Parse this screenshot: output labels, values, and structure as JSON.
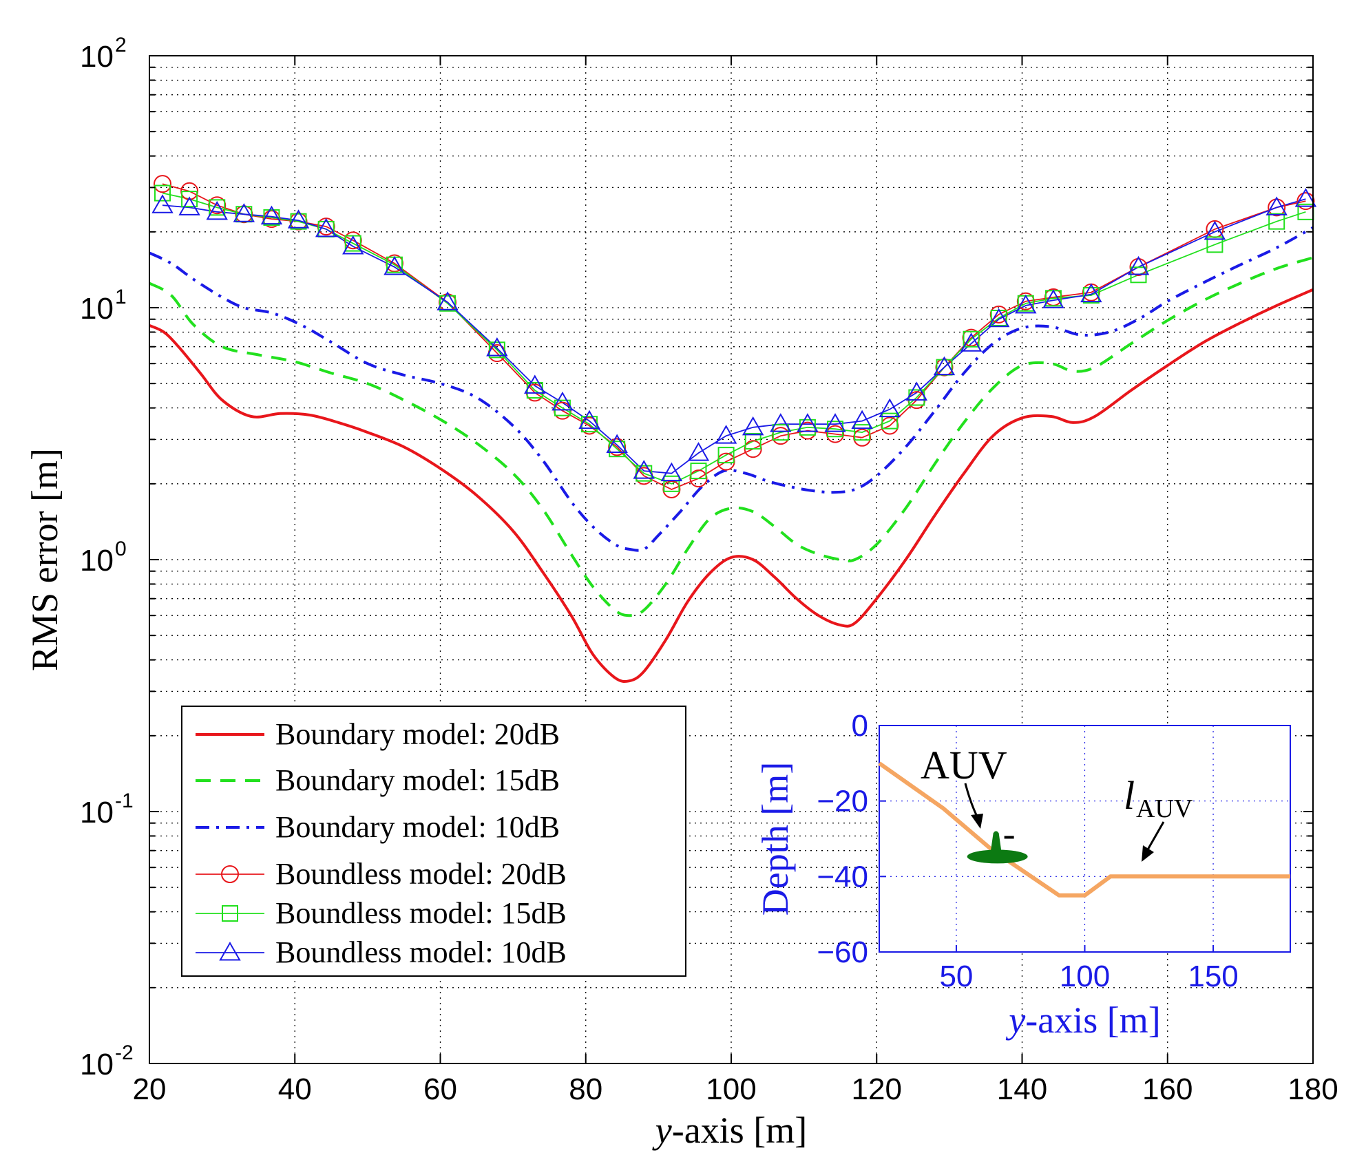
{
  "chart_data": {
    "type": "line",
    "title": "",
    "xlabel_italic": "y",
    "xlabel_rest": "-axis [m]",
    "ylabel": "RMS error [m]",
    "x_range": [
      20,
      180
    ],
    "y_range_log": [
      0.01,
      100
    ],
    "y_scale": "log",
    "grid": true,
    "x_ticks": [
      "20",
      "40",
      "60",
      "80",
      "100",
      "120",
      "140",
      "160",
      "180"
    ],
    "y_ticks": [
      {
        "base": "10",
        "exp": "-2",
        "value": 0.01
      },
      {
        "base": "10",
        "exp": "-1",
        "value": 0.1
      },
      {
        "base": "10",
        "exp": "0",
        "value": 1
      },
      {
        "base": "10",
        "exp": "1",
        "value": 10
      },
      {
        "base": "10",
        "exp": "2",
        "value": 100
      }
    ],
    "legend_placement": "bottom-left",
    "series": [
      {
        "name": "Boundary model: 20dB",
        "color": "#e8161b",
        "style": "solid",
        "marker": "none",
        "x": [
          20,
          22,
          24,
          27,
          30,
          34,
          38,
          42,
          46,
          50,
          55,
          60,
          65,
          70,
          74,
          78,
          81,
          84,
          86,
          88,
          91,
          94,
          97,
          100,
          103,
          106,
          109,
          112,
          115,
          117,
          120,
          124,
          128,
          132,
          136,
          140,
          144,
          147,
          150,
          155,
          160,
          165,
          170,
          175,
          180
        ],
        "values": [
          8.5,
          8.0,
          7.0,
          5.5,
          4.3,
          3.7,
          3.8,
          3.75,
          3.5,
          3.2,
          2.8,
          2.3,
          1.8,
          1.3,
          0.9,
          0.6,
          0.42,
          0.34,
          0.33,
          0.36,
          0.48,
          0.68,
          0.88,
          1.02,
          1.0,
          0.85,
          0.7,
          0.6,
          0.55,
          0.56,
          0.7,
          1.0,
          1.5,
          2.2,
          3.1,
          3.65,
          3.7,
          3.5,
          3.7,
          4.7,
          5.9,
          7.3,
          8.7,
          10.2,
          11.8
        ]
      },
      {
        "name": "Boundary model: 15dB",
        "color": "#22e01e",
        "style": "dashed",
        "marker": "none",
        "x": [
          20,
          23,
          26,
          30,
          35,
          40,
          45,
          50,
          55,
          60,
          65,
          70,
          74,
          78,
          81,
          84,
          86,
          88,
          91,
          94,
          97,
          100,
          103,
          106,
          109,
          112,
          115,
          117,
          120,
          124,
          128,
          132,
          136,
          140,
          144,
          147,
          150,
          155,
          160,
          165,
          170,
          175,
          180
        ],
        "values": [
          12.5,
          11.2,
          8.6,
          7.0,
          6.5,
          6.1,
          5.5,
          5.0,
          4.3,
          3.6,
          2.9,
          2.2,
          1.6,
          1.05,
          0.78,
          0.63,
          0.6,
          0.63,
          0.8,
          1.1,
          1.45,
          1.6,
          1.55,
          1.35,
          1.15,
          1.05,
          1.0,
          1.0,
          1.15,
          1.6,
          2.4,
          3.5,
          4.8,
          5.9,
          6.0,
          5.6,
          5.8,
          7.2,
          8.9,
          10.7,
          12.5,
          14.3,
          15.8
        ]
      },
      {
        "name": "Boundary model: 10dB",
        "color": "#1a1ae6",
        "style": "dashdot",
        "marker": "none",
        "x": [
          20,
          23,
          26,
          30,
          33,
          37,
          41,
          45,
          50,
          55,
          60,
          65,
          70,
          74,
          78,
          81,
          84,
          86,
          88,
          90,
          93,
          96,
          99,
          102,
          105,
          108,
          111,
          114,
          117,
          120,
          124,
          128,
          132,
          136,
          140,
          144,
          148,
          152,
          156,
          160,
          165,
          170,
          175,
          180
        ],
        "values": [
          16.5,
          15.0,
          13.0,
          11.0,
          10.0,
          9.5,
          8.5,
          7.3,
          6.0,
          5.4,
          5.0,
          4.4,
          3.4,
          2.5,
          1.7,
          1.35,
          1.15,
          1.1,
          1.1,
          1.25,
          1.55,
          1.95,
          2.25,
          2.2,
          2.05,
          1.95,
          1.88,
          1.85,
          1.9,
          2.15,
          2.8,
          3.9,
          5.5,
          7.2,
          8.3,
          8.4,
          7.8,
          8.0,
          9.0,
          10.6,
          12.6,
          14.8,
          17.3,
          20.8
        ]
      },
      {
        "name": "Boundless model: 20dB",
        "color": "#e8161b",
        "style": "solid",
        "marker": "circle",
        "x": [
          21.8,
          25.5,
          29.3,
          33.0,
          36.8,
          40.5,
          44.3,
          48.0,
          53.7,
          61.0,
          67.8,
          73.0,
          76.8,
          80.5,
          84.3,
          88.0,
          91.8,
          95.5,
          99.3,
          103.0,
          106.8,
          110.5,
          114.3,
          118.0,
          121.8,
          125.5,
          129.3,
          133.0,
          136.8,
          140.5,
          144.3,
          149.5,
          156.0,
          166.5,
          175.0,
          179.0
        ],
        "values": [
          31.0,
          29.0,
          25.5,
          23.5,
          22.5,
          22.0,
          21.0,
          18.5,
          15.0,
          10.5,
          6.6,
          4.6,
          3.9,
          3.4,
          2.8,
          2.15,
          1.9,
          2.1,
          2.45,
          2.75,
          3.1,
          3.25,
          3.15,
          3.05,
          3.4,
          4.3,
          5.8,
          7.6,
          9.4,
          10.6,
          11.0,
          11.5,
          14.5,
          20.5,
          25.0,
          26.5
        ]
      },
      {
        "name": "Boundless model: 15dB",
        "color": "#22e01e",
        "style": "solid",
        "marker": "square",
        "x": [
          21.8,
          25.5,
          29.3,
          33.0,
          36.8,
          40.5,
          44.3,
          48.0,
          53.7,
          61.0,
          67.8,
          73.0,
          76.8,
          80.5,
          84.3,
          88.0,
          91.8,
          95.5,
          99.3,
          103.0,
          106.8,
          110.5,
          114.3,
          118.0,
          121.8,
          125.5,
          129.3,
          133.0,
          136.8,
          140.5,
          144.3,
          149.5,
          156.0,
          166.5,
          175.0,
          179.0
        ],
        "values": [
          28.5,
          27.0,
          25.0,
          23.5,
          22.8,
          22.0,
          20.5,
          18.0,
          14.8,
          10.4,
          6.8,
          4.7,
          4.0,
          3.45,
          2.75,
          2.2,
          2.0,
          2.25,
          2.6,
          2.95,
          3.2,
          3.35,
          3.3,
          3.2,
          3.55,
          4.4,
          5.8,
          7.5,
          9.1,
          10.4,
          10.9,
          11.2,
          13.5,
          17.8,
          22.0,
          24.0
        ]
      },
      {
        "name": "Boundless model: 10dB",
        "color": "#1a1ae6",
        "style": "solid",
        "marker": "triangle",
        "x": [
          21.8,
          25.5,
          29.3,
          33.0,
          36.8,
          40.5,
          44.3,
          48.0,
          53.7,
          61.0,
          67.8,
          73.0,
          76.8,
          80.5,
          84.3,
          88.0,
          91.8,
          95.5,
          99.3,
          103.0,
          106.8,
          110.5,
          114.3,
          118.0,
          121.8,
          125.5,
          129.3,
          133.0,
          136.8,
          140.5,
          144.3,
          149.5,
          156.0,
          166.5,
          175.0,
          179.0
        ],
        "values": [
          25.5,
          25.0,
          24.0,
          23.5,
          23.0,
          22.2,
          20.5,
          17.5,
          14.5,
          10.5,
          6.9,
          4.9,
          4.2,
          3.55,
          2.85,
          2.25,
          2.2,
          2.65,
          3.1,
          3.35,
          3.45,
          3.45,
          3.45,
          3.55,
          3.95,
          4.6,
          5.8,
          7.2,
          9.0,
          10.2,
          10.7,
          11.3,
          14.5,
          20.0,
          25.0,
          27.0
        ]
      }
    ],
    "inset": {
      "ylabel": "Depth [m]",
      "xlabel_italic": "y",
      "xlabel_rest": "-axis [m]",
      "axis_color": "#1a1ae6",
      "x_range": [
        20,
        180
      ],
      "y_range": [
        -60,
        0
      ],
      "x_ticks": [
        "50",
        "100",
        "150"
      ],
      "y_ticks": [
        "0",
        "−20",
        "−40",
        "−60"
      ],
      "path_color": "#f5a662",
      "path": {
        "x": [
          20,
          45,
          64,
          90,
          100,
          110,
          180
        ],
        "y": [
          -10,
          -22,
          -33,
          -45,
          -45,
          -40,
          -40
        ]
      },
      "auv_position": {
        "x": 66,
        "y": -34
      },
      "auv_color": "#0c7a12",
      "annotation_auv": "AUV",
      "annotation_path_symbol": "l",
      "annotation_path_subscript": "AUV"
    }
  }
}
